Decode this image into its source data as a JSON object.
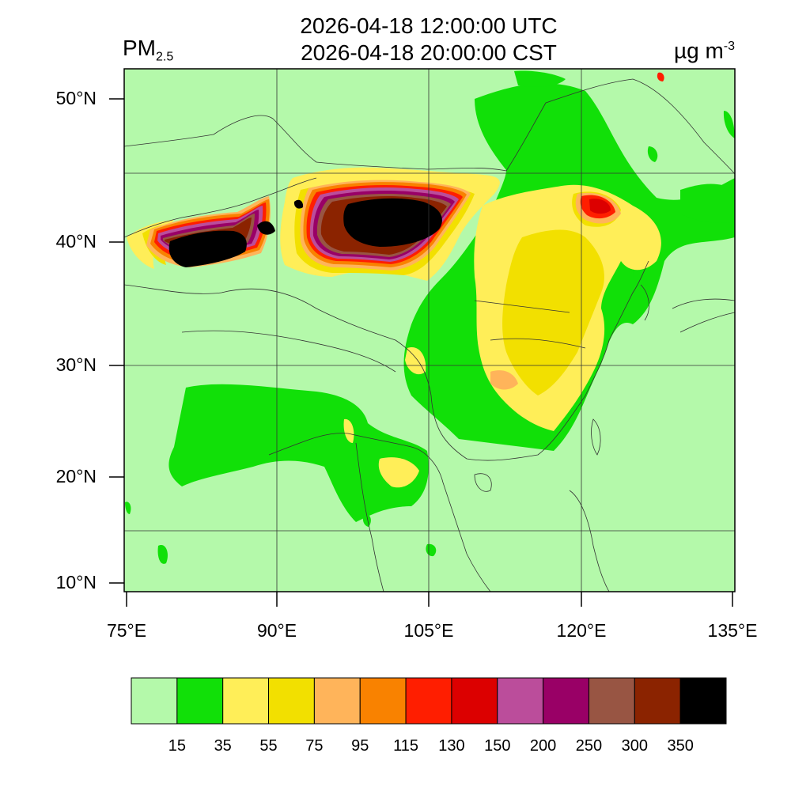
{
  "header": {
    "time_utc": "2026-04-18 12:00:00 UTC",
    "time_cst": "2026-04-18 20:00:00 CST",
    "variable": "PM",
    "variable_sub": "2.5",
    "unit": "µg m",
    "unit_sup": "-3"
  },
  "map": {
    "lat_ticks": [
      {
        "value": 50,
        "label": "50°N"
      },
      {
        "value": 40,
        "label": "40°N"
      },
      {
        "value": 30,
        "label": "30°N"
      },
      {
        "value": 20,
        "label": "20°N"
      },
      {
        "value": 10,
        "label": "10°N"
      }
    ],
    "lon_ticks": [
      {
        "value": 75,
        "label": "75°E"
      },
      {
        "value": 90,
        "label": "90°E"
      },
      {
        "value": 105,
        "label": "105°E"
      },
      {
        "value": 120,
        "label": "120°E"
      },
      {
        "value": 135,
        "label": "135°E"
      }
    ],
    "extent": {
      "lon_min": 75,
      "lon_max": 135,
      "lat_min": 9,
      "lat_max": 52.5
    },
    "grid": true
  },
  "legend": {
    "colors": [
      "#b4f9aa",
      "#11e008",
      "#ffee58",
      "#f2e000",
      "#ffb45a",
      "#f98200",
      "#ff1e00",
      "#dc0000",
      "#bb4d9b",
      "#990066",
      "#985543",
      "#8b2300",
      "#000000"
    ],
    "ticks": [
      "15",
      "35",
      "55",
      "75",
      "95",
      "115",
      "130",
      "150",
      "200",
      "250",
      "300",
      "350"
    ]
  },
  "colors": {
    "background_level": "#b4f9aa",
    "border_lines": "#333333"
  }
}
